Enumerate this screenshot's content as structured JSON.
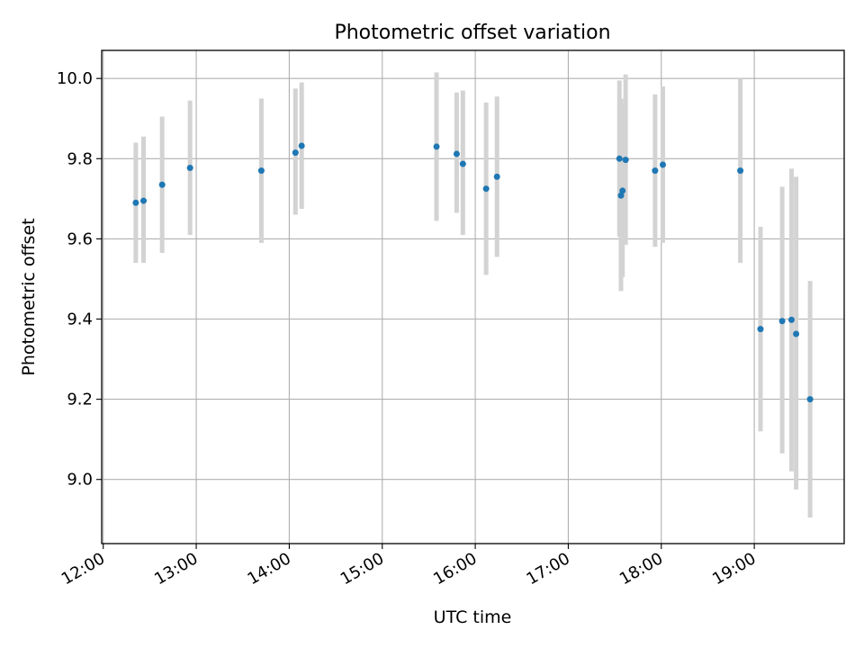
{
  "chart_data": {
    "type": "scatter",
    "title": "Photometric offset variation",
    "xlabel": "UTC time",
    "ylabel": "Photometric offset",
    "xlim": [
      "11:59",
      "19:58"
    ],
    "ylim": [
      8.84,
      10.07
    ],
    "xticks": [
      "12:00",
      "13:00",
      "14:00",
      "15:00",
      "16:00",
      "17:00",
      "18:00",
      "19:00"
    ],
    "yticks": [
      "9.0",
      "9.2",
      "9.4",
      "9.6",
      "9.8",
      "10.0"
    ],
    "grid": true,
    "errorbar_color": "#d3d3d3",
    "point_color": "#1f77b4",
    "points": [
      {
        "x": "12:21",
        "y": 9.69,
        "ylow": 9.54,
        "yhigh": 9.84
      },
      {
        "x": "12:26",
        "y": 9.695,
        "ylow": 9.54,
        "yhigh": 9.855
      },
      {
        "x": "12:38",
        "y": 9.735,
        "ylow": 9.565,
        "yhigh": 9.905
      },
      {
        "x": "12:56",
        "y": 9.777,
        "ylow": 9.61,
        "yhigh": 9.945
      },
      {
        "x": "13:42",
        "y": 9.77,
        "ylow": 9.59,
        "yhigh": 9.95
      },
      {
        "x": "14:04",
        "y": 9.815,
        "ylow": 9.66,
        "yhigh": 9.975
      },
      {
        "x": "14:08",
        "y": 9.832,
        "ylow": 9.675,
        "yhigh": 9.99
      },
      {
        "x": "15:35",
        "y": 9.83,
        "ylow": 9.645,
        "yhigh": 10.015
      },
      {
        "x": "15:48",
        "y": 9.812,
        "ylow": 9.665,
        "yhigh": 9.965
      },
      {
        "x": "15:52",
        "y": 9.787,
        "ylow": 9.61,
        "yhigh": 9.97
      },
      {
        "x": "16:07",
        "y": 9.725,
        "ylow": 9.51,
        "yhigh": 9.94
      },
      {
        "x": "16:14",
        "y": 9.755,
        "ylow": 9.555,
        "yhigh": 9.955
      },
      {
        "x": "17:33",
        "y": 9.8,
        "ylow": 9.605,
        "yhigh": 9.995
      },
      {
        "x": "17:34",
        "y": 9.708,
        "ylow": 9.47,
        "yhigh": 9.95
      },
      {
        "x": "17:35",
        "y": 9.72,
        "ylow": 9.505,
        "yhigh": 9.935
      },
      {
        "x": "17:37",
        "y": 9.797,
        "ylow": 9.585,
        "yhigh": 10.01
      },
      {
        "x": "17:56",
        "y": 9.77,
        "ylow": 9.58,
        "yhigh": 9.96
      },
      {
        "x": "18:01",
        "y": 9.785,
        "ylow": 9.59,
        "yhigh": 9.98
      },
      {
        "x": "18:51",
        "y": 9.77,
        "ylow": 9.54,
        "yhigh": 10.0
      },
      {
        "x": "19:04",
        "y": 9.375,
        "ylow": 9.12,
        "yhigh": 9.63
      },
      {
        "x": "19:18",
        "y": 9.395,
        "ylow": 9.065,
        "yhigh": 9.73
      },
      {
        "x": "19:24",
        "y": 9.398,
        "ylow": 9.02,
        "yhigh": 9.775
      },
      {
        "x": "19:27",
        "y": 9.363,
        "ylow": 8.975,
        "yhigh": 9.755
      },
      {
        "x": "19:36",
        "y": 9.2,
        "ylow": 8.905,
        "yhigh": 9.495
      }
    ]
  }
}
